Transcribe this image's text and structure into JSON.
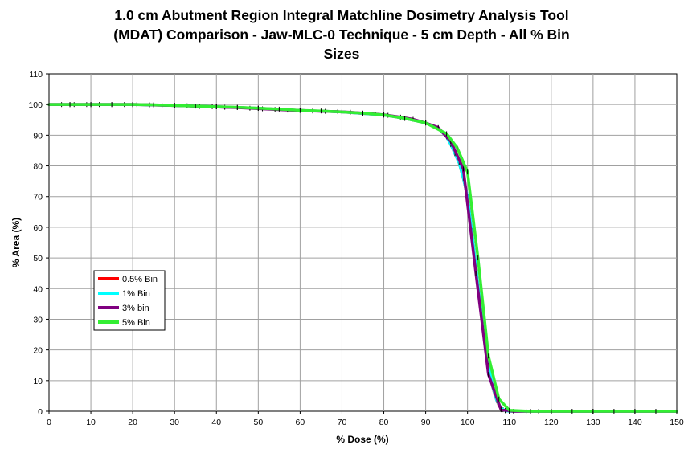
{
  "chart_data": {
    "type": "line",
    "title_lines": [
      "1.0 cm Abutment Region Integral Matchline Dosimetry Analysis Tool",
      "(MDAT) Comparison - Jaw-MLC-0 Technique - 5 cm Depth - All % Bin",
      "Sizes"
    ],
    "xlabel": "% Dose (%)",
    "ylabel": "% Area (%)",
    "xlim": [
      0,
      150
    ],
    "ylim": [
      0,
      110
    ],
    "xticks": [
      0,
      10,
      20,
      30,
      40,
      50,
      60,
      70,
      80,
      90,
      100,
      110,
      120,
      130,
      140,
      150
    ],
    "yticks": [
      0,
      10,
      20,
      30,
      40,
      50,
      60,
      70,
      80,
      90,
      100,
      110
    ],
    "grid": true,
    "legend_position": "left-middle",
    "series": [
      {
        "name": "0.5% Bin",
        "color": "#ff0000",
        "x": [
          0,
          5,
          10,
          20,
          30,
          40,
          50,
          60,
          70,
          80,
          85,
          90,
          93,
          95,
          96,
          97,
          98,
          99,
          100,
          100.5,
          101,
          101.5,
          102,
          102.5,
          103,
          103.5,
          104,
          104.5,
          105,
          105.5,
          106,
          106.5,
          107,
          107.5,
          108,
          108.5,
          109,
          110,
          115,
          120,
          130,
          140,
          150
        ],
        "y": [
          100,
          100,
          100,
          100,
          99.7,
          99.3,
          98.8,
          98.1,
          97.6,
          96.6,
          95.5,
          94,
          92.3,
          89.5,
          87,
          84,
          81,
          76,
          70,
          65,
          59,
          53,
          47,
          41,
          35,
          29,
          24,
          19,
          15,
          11,
          8,
          5.5,
          3.5,
          2,
          1,
          0.5,
          0.2,
          0,
          0,
          0,
          0,
          0,
          0
        ]
      },
      {
        "name": "1% Bin",
        "color": "#00ffff",
        "x": [
          0,
          5,
          10,
          20,
          30,
          40,
          50,
          60,
          70,
          80,
          85,
          90,
          93,
          95,
          96,
          97,
          98,
          99,
          100,
          101,
          102,
          103,
          104,
          105,
          106,
          107,
          108,
          109,
          110,
          115,
          120,
          130,
          140,
          150
        ],
        "y": [
          100,
          100,
          100,
          100,
          99.7,
          99.3,
          98.8,
          98.1,
          97.6,
          96.6,
          95.5,
          94,
          92.3,
          89.5,
          87,
          84,
          81,
          76,
          70,
          59,
          47,
          35,
          24,
          15,
          8,
          3.5,
          1,
          0.2,
          0,
          0,
          0,
          0,
          0,
          0
        ]
      },
      {
        "name": "3% bin",
        "color": "#800080",
        "x": [
          0,
          3,
          6,
          9,
          12,
          15,
          18,
          21,
          24,
          27,
          30,
          33,
          36,
          39,
          42,
          45,
          48,
          51,
          54,
          57,
          60,
          63,
          66,
          69,
          72,
          75,
          78,
          81,
          84,
          87,
          90,
          93,
          96,
          99,
          102,
          105,
          108,
          111,
          114,
          117,
          120,
          150
        ],
        "y": [
          100,
          100,
          100,
          100,
          100,
          100,
          100,
          100,
          99.9,
          99.8,
          99.7,
          99.6,
          99.4,
          99.3,
          99.1,
          99,
          98.8,
          98.6,
          98.4,
          98.2,
          98.1,
          97.9,
          97.8,
          97.7,
          97.5,
          97.2,
          96.9,
          96.5,
          95.9,
          95.2,
          94,
          92.5,
          88,
          79,
          45,
          12,
          0.5,
          0,
          0,
          0,
          0,
          0
        ]
      },
      {
        "name": "5% Bin",
        "color": "#33ee33",
        "x": [
          0,
          5,
          10,
          15,
          20,
          25,
          30,
          35,
          40,
          45,
          50,
          55,
          60,
          65,
          70,
          75,
          80,
          85,
          90,
          95,
          97.5,
          100,
          102.5,
          105,
          107.5,
          110,
          115,
          120,
          125,
          130,
          135,
          140,
          145,
          150
        ],
        "y": [
          100,
          100,
          100,
          100,
          100,
          99.9,
          99.7,
          99.5,
          99.3,
          99.1,
          98.8,
          98.5,
          98.1,
          97.9,
          97.6,
          97.2,
          96.6,
          95.5,
          94,
          90.5,
          86,
          78,
          50,
          18,
          4,
          0.3,
          0,
          0,
          0,
          0,
          0,
          0,
          0,
          0
        ]
      }
    ]
  }
}
